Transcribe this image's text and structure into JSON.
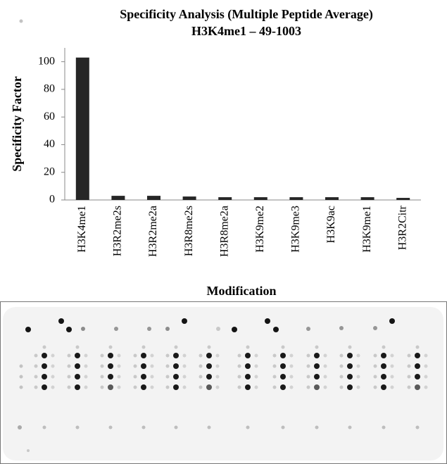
{
  "chart_data": {
    "type": "bar",
    "title": "Specificity Analysis  (Multiple Peptide Average)",
    "subtitle": "H3K4me1 – 49-1003",
    "x_label": "Modification",
    "y_label": "Specificity Factor",
    "categories": [
      "H3K4me1",
      "H3R2me2s",
      "H3R2me2a",
      "H3R8me2s",
      "H3R8me2a",
      "H3K9me2",
      "H3K9me3",
      "H3K9ac",
      "H3K9me1",
      "H3R2Citr"
    ],
    "values": [
      103,
      3,
      3,
      2.5,
      2,
      2,
      2,
      2,
      2,
      1.5
    ],
    "color": "#262626",
    "ylim": [
      0,
      110
    ],
    "yticks": [
      0,
      20,
      40,
      60,
      80,
      100
    ],
    "grid": false
  }
}
